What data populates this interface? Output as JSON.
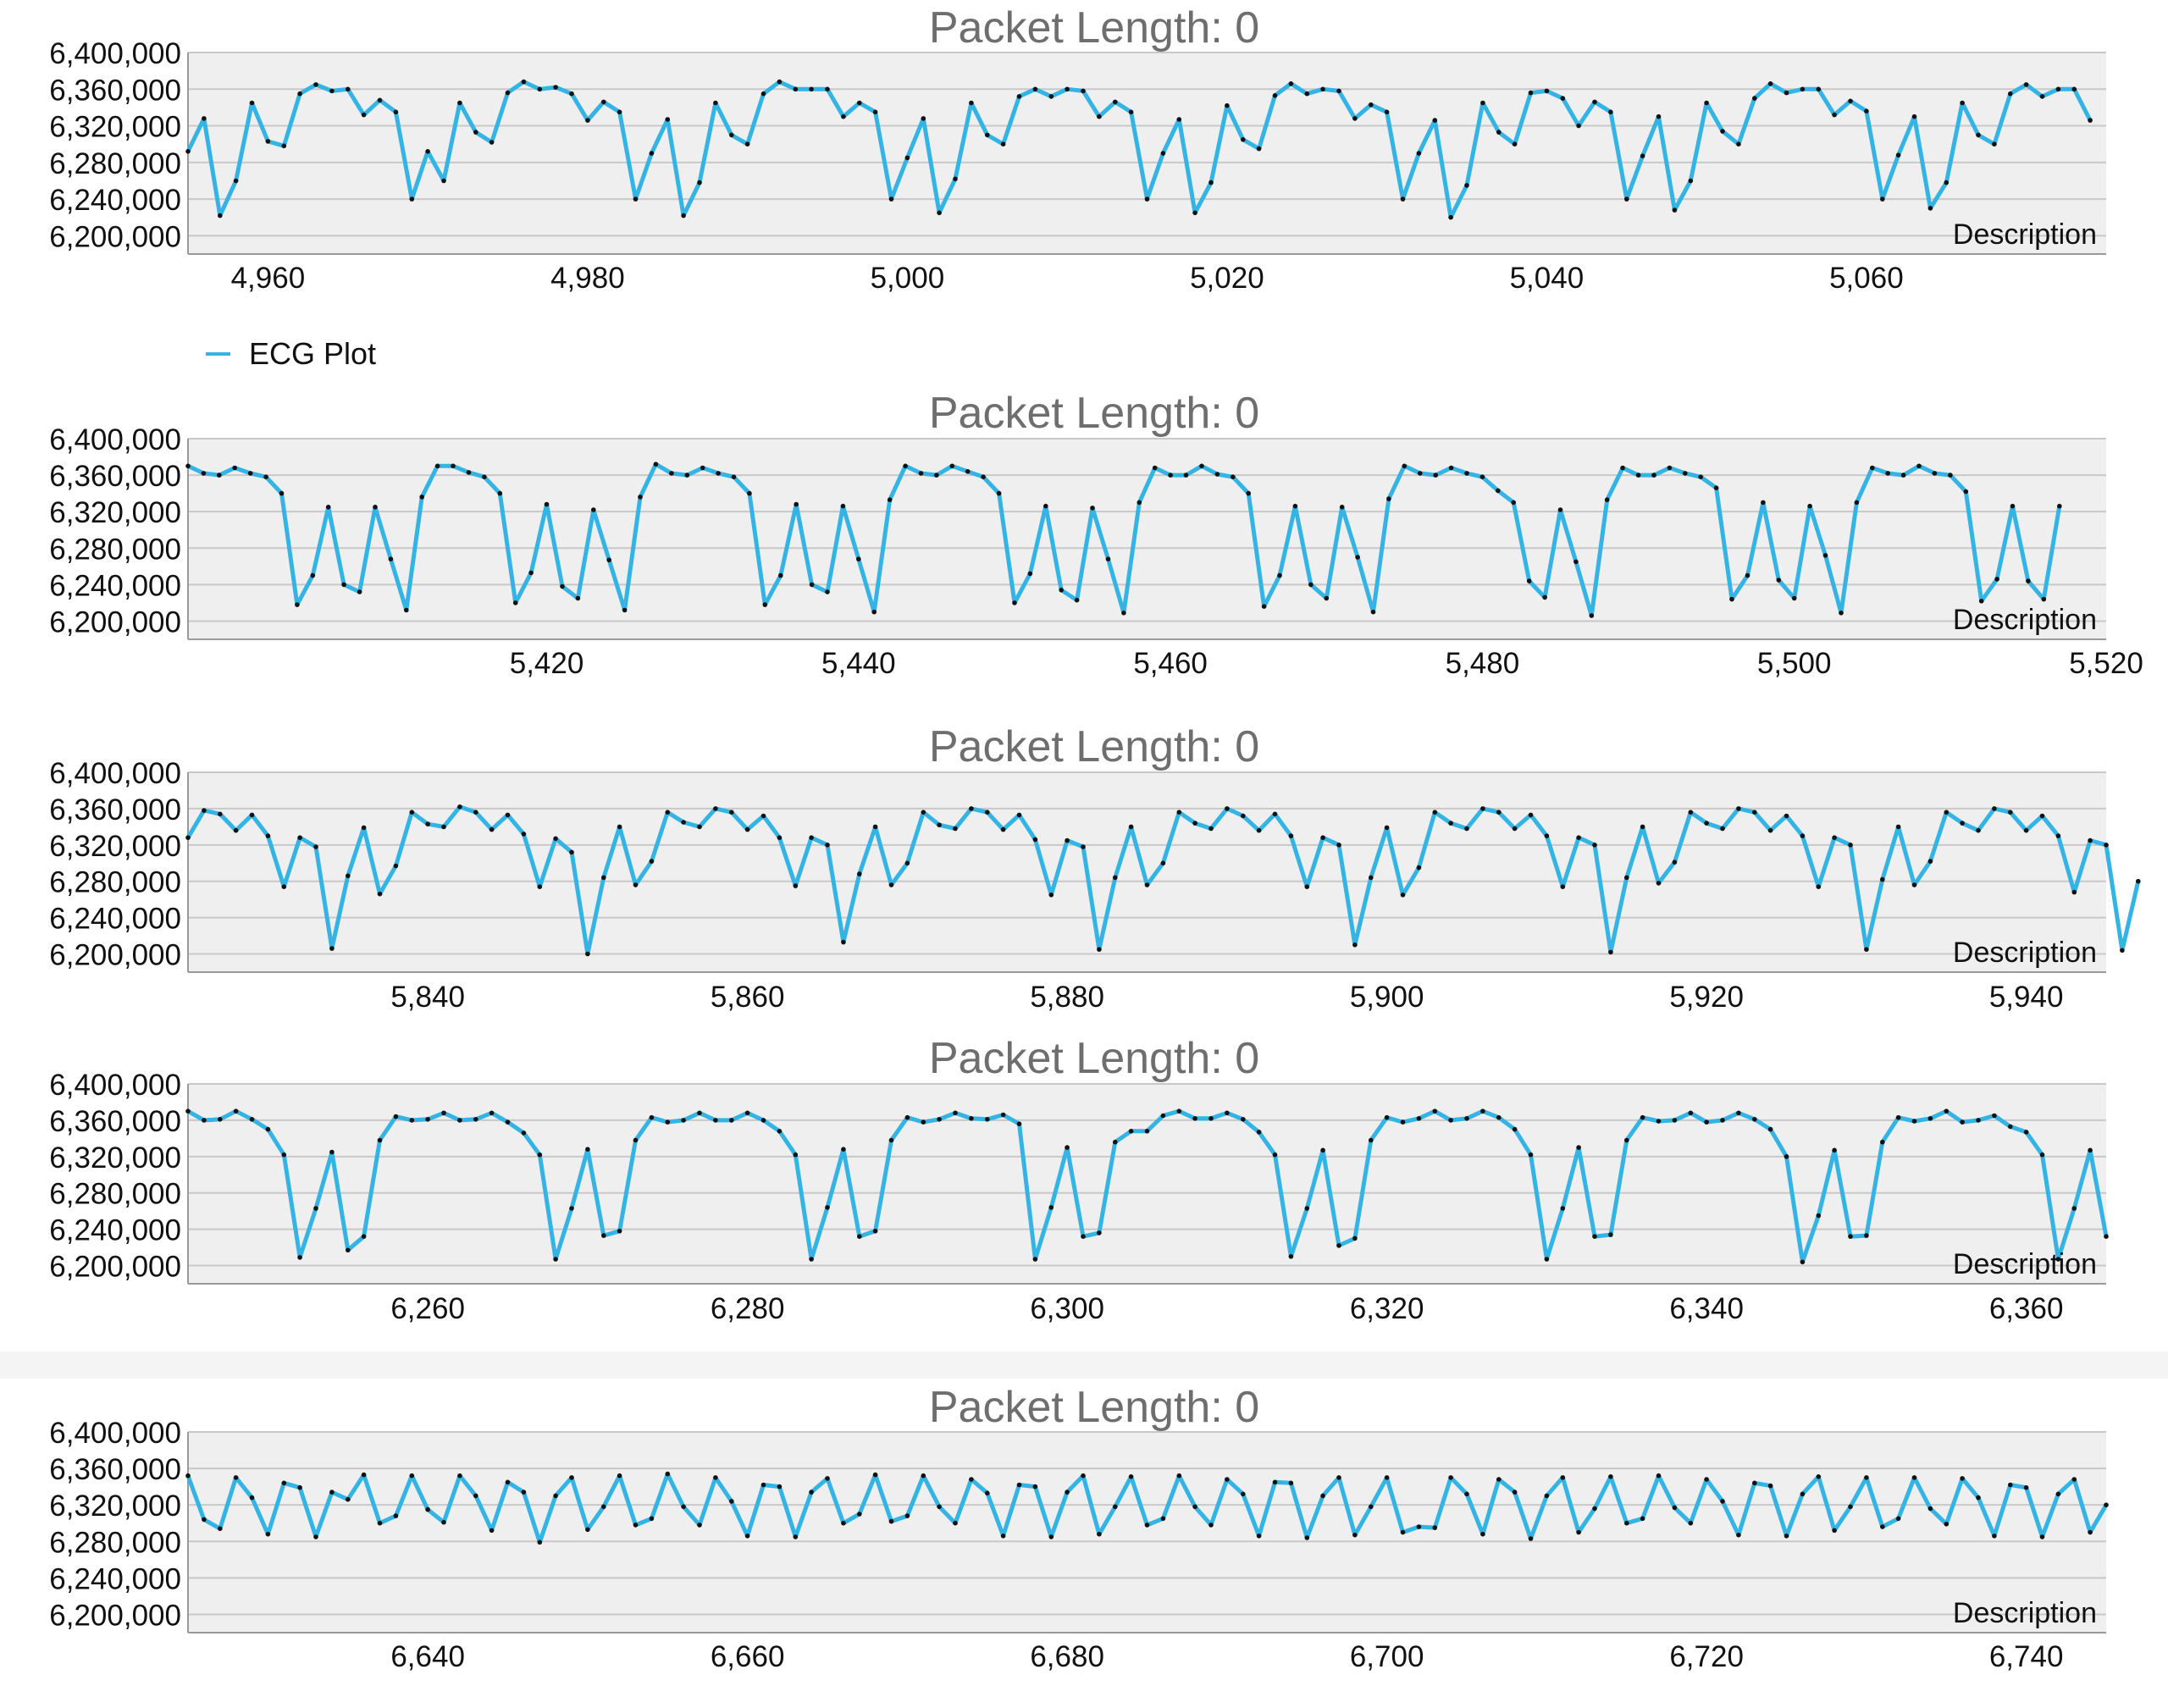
{
  "legend": {
    "label": "ECG Plot",
    "color": "#34B4E4"
  },
  "style": {
    "line_color": "#34B4E4",
    "marker_color": "#111111",
    "plot_bg": "#EFEFEF",
    "grid_color": "#C8C8C8"
  },
  "chart_data": [
    {
      "type": "line",
      "title": "Packet Length: 0",
      "description": "Description",
      "xlim": [
        4955,
        5075
      ],
      "ylim": [
        6180000,
        6400000
      ],
      "yticks": [
        "6,400,000",
        "6,360,000",
        "6,320,000",
        "6,280,000",
        "6,240,000",
        "6,200,000"
      ],
      "xticks": [
        "4,960",
        "4,980",
        "5,000",
        "5,020",
        "5,040",
        "5,060"
      ],
      "series": [
        {
          "x_start": 4955,
          "values": [
            6292000,
            6328000,
            6222000,
            6260000,
            6345000,
            6303000,
            6298000,
            6355000,
            6365000,
            6358000,
            6360000,
            6332000,
            6348000,
            6335000,
            6240000,
            6292000,
            6260000,
            6345000,
            6313000,
            6302000,
            6356000,
            6368000,
            6360000,
            6362000,
            6355000,
            6326000,
            6346000,
            6335000,
            6240000,
            6290000,
            6327000,
            6222000,
            6258000,
            6345000,
            6310000,
            6300000,
            6355000,
            6368000,
            6360000,
            6360000,
            6360000,
            6330000,
            6345000,
            6335000,
            6240000,
            6285000,
            6328000,
            6225000,
            6262000,
            6345000,
            6310000,
            6300000,
            6352000,
            6360000,
            6352000,
            6360000,
            6358000,
            6330000,
            6346000,
            6335000,
            6240000,
            6290000,
            6327000,
            6225000,
            6258000,
            6342000,
            6305000,
            6295000,
            6353000,
            6366000,
            6355000,
            6360000,
            6358000,
            6328000,
            6343000,
            6335000,
            6240000,
            6290000,
            6326000,
            6220000,
            6255000,
            6345000,
            6313000,
            6300000,
            6356000,
            6358000,
            6350000,
            6320000,
            6346000,
            6335000,
            6240000,
            6287000,
            6330000,
            6228000,
            6260000,
            6345000,
            6314000,
            6300000,
            6350000,
            6366000,
            6356000,
            6360000,
            6360000,
            6332000,
            6347000,
            6336000,
            6240000,
            6288000,
            6330000,
            6230000,
            6258000,
            6345000,
            6310000,
            6300000,
            6355000,
            6365000,
            6352000,
            6360000,
            6360000,
            6326000
          ]
        }
      ]
    },
    {
      "type": "line",
      "title": "Packet Length: 0",
      "description": "Description",
      "xlim": [
        5397,
        5520
      ],
      "ylim": [
        6180000,
        6400000
      ],
      "yticks": [
        "6,400,000",
        "6,360,000",
        "6,320,000",
        "6,280,000",
        "6,240,000",
        "6,200,000"
      ],
      "xticks": [
        "5,420",
        "5,440",
        "5,460",
        "5,480",
        "5,500",
        "5,520"
      ],
      "series": [
        {
          "x_start": 5397,
          "values": [
            6370000,
            6362000,
            6360000,
            6368000,
            6362000,
            6358000,
            6340000,
            6218000,
            6250000,
            6325000,
            6240000,
            6232000,
            6325000,
            6268000,
            6212000,
            6336000,
            6370000,
            6370000,
            6363000,
            6358000,
            6340000,
            6220000,
            6253000,
            6328000,
            6238000,
            6225000,
            6322000,
            6267000,
            6212000,
            6336000,
            6372000,
            6362000,
            6360000,
            6368000,
            6362000,
            6358000,
            6340000,
            6218000,
            6250000,
            6328000,
            6240000,
            6232000,
            6326000,
            6268000,
            6210000,
            6333000,
            6370000,
            6362000,
            6360000,
            6370000,
            6364000,
            6358000,
            6340000,
            6220000,
            6252000,
            6326000,
            6234000,
            6223000,
            6324000,
            6268000,
            6209000,
            6330000,
            6368000,
            6360000,
            6360000,
            6370000,
            6361000,
            6358000,
            6340000,
            6216000,
            6250000,
            6326000,
            6240000,
            6225000,
            6325000,
            6270000,
            6210000,
            6334000,
            6370000,
            6362000,
            6360000,
            6368000,
            6362000,
            6358000,
            6343000,
            6330000,
            6244000,
            6226000,
            6322000,
            6265000,
            6206000,
            6333000,
            6368000,
            6360000,
            6360000,
            6368000,
            6362000,
            6358000,
            6346000,
            6224000,
            6250000,
            6330000,
            6245000,
            6225000,
            6326000,
            6272000,
            6209000,
            6330000,
            6368000,
            6362000,
            6360000,
            6370000,
            6362000,
            6360000,
            6342000,
            6222000,
            6246000,
            6326000,
            6244000,
            6224000,
            6326000
          ]
        }
      ]
    },
    {
      "type": "line",
      "title": "Packet Length: 0",
      "description": "Description",
      "xlim": [
        5825,
        5945
      ],
      "ylim": [
        6180000,
        6400000
      ],
      "yticks": [
        "6,400,000",
        "6,360,000",
        "6,320,000",
        "6,280,000",
        "6,240,000",
        "6,200,000"
      ],
      "xticks": [
        "5,840",
        "5,860",
        "5,880",
        "5,900",
        "5,920",
        "5,940"
      ],
      "series": [
        {
          "x_start": 5825,
          "values": [
            6328000,
            6358000,
            6354000,
            6336000,
            6353000,
            6330000,
            6274000,
            6328000,
            6318000,
            6206000,
            6286000,
            6339000,
            6266000,
            6297000,
            6356000,
            6343000,
            6340000,
            6362000,
            6356000,
            6337000,
            6353000,
            6332000,
            6274000,
            6327000,
            6312000,
            6200000,
            6284000,
            6340000,
            6276000,
            6302000,
            6356000,
            6345000,
            6340000,
            6360000,
            6356000,
            6337000,
            6352000,
            6328000,
            6275000,
            6328000,
            6320000,
            6213000,
            6288000,
            6340000,
            6276000,
            6300000,
            6356000,
            6342000,
            6338000,
            6360000,
            6356000,
            6337000,
            6353000,
            6326000,
            6265000,
            6325000,
            6318000,
            6205000,
            6284000,
            6340000,
            6276000,
            6300000,
            6356000,
            6344000,
            6338000,
            6360000,
            6352000,
            6336000,
            6354000,
            6330000,
            6274000,
            6328000,
            6320000,
            6210000,
            6284000,
            6339000,
            6265000,
            6295000,
            6356000,
            6344000,
            6338000,
            6360000,
            6356000,
            6338000,
            6353000,
            6330000,
            6274000,
            6328000,
            6320000,
            6202000,
            6284000,
            6340000,
            6278000,
            6301000,
            6356000,
            6344000,
            6338000,
            6360000,
            6356000,
            6336000,
            6352000,
            6330000,
            6274000,
            6328000,
            6320000,
            6205000,
            6282000,
            6340000,
            6276000,
            6302000,
            6356000,
            6344000,
            6336000,
            6360000,
            6356000,
            6336000,
            6352000,
            6330000,
            6268000,
            6325000,
            6320000,
            6204000,
            6280000
          ]
        }
      ]
    },
    {
      "type": "line",
      "title": "Packet Length: 0",
      "description": "Description",
      "xlim": [
        6245,
        6365
      ],
      "ylim": [
        6180000,
        6400000
      ],
      "yticks": [
        "6,400,000",
        "6,360,000",
        "6,320,000",
        "6,280,000",
        "6,240,000",
        "6,200,000"
      ],
      "xticks": [
        "6,260",
        "6,280",
        "6,300",
        "6,320",
        "6,340",
        "6,360"
      ],
      "series": [
        {
          "x_start": 6245,
          "values": [
            6370000,
            6360000,
            6361000,
            6370000,
            6361000,
            6350000,
            6322000,
            6209000,
            6263000,
            6325000,
            6217000,
            6232000,
            6338000,
            6364000,
            6360000,
            6361000,
            6368000,
            6360000,
            6361000,
            6368000,
            6358000,
            6346000,
            6322000,
            6207000,
            6263000,
            6328000,
            6233000,
            6238000,
            6338000,
            6363000,
            6358000,
            6360000,
            6368000,
            6360000,
            6360000,
            6368000,
            6360000,
            6348000,
            6322000,
            6207000,
            6264000,
            6328000,
            6232000,
            6238000,
            6338000,
            6363000,
            6358000,
            6361000,
            6368000,
            6362000,
            6361000,
            6366000,
            6356000,
            6207000,
            6264000,
            6330000,
            6232000,
            6236000,
            6336000,
            6348000,
            6348000,
            6365000,
            6370000,
            6362000,
            6362000,
            6368000,
            6361000,
            6347000,
            6322000,
            6210000,
            6263000,
            6327000,
            6222000,
            6230000,
            6338000,
            6363000,
            6358000,
            6362000,
            6370000,
            6360000,
            6362000,
            6370000,
            6363000,
            6350000,
            6322000,
            6207000,
            6263000,
            6330000,
            6232000,
            6234000,
            6338000,
            6363000,
            6359000,
            6360000,
            6368000,
            6358000,
            6360000,
            6368000,
            6361000,
            6350000,
            6320000,
            6204000,
            6255000,
            6327000,
            6232000,
            6233000,
            6336000,
            6363000,
            6359000,
            6362000,
            6370000,
            6358000,
            6360000,
            6365000,
            6353000,
            6347000,
            6322000,
            6207000,
            6263000,
            6327000,
            6232000
          ]
        }
      ]
    },
    {
      "type": "line",
      "title": "Packet Length: 0",
      "description": "Description",
      "xlim": [
        6625,
        6745
      ],
      "ylim": [
        6180000,
        6400000
      ],
      "yticks": [
        "6,400,000",
        "6,360,000",
        "6,320,000",
        "6,280,000",
        "6,240,000",
        "6,200,000"
      ],
      "xticks": [
        "6,640",
        "6,660",
        "6,680",
        "6,700",
        "6,720",
        "6,740"
      ],
      "series": [
        {
          "x_start": 6625,
          "values": [
            6352000,
            6304000,
            6294000,
            6350000,
            6328000,
            6288000,
            6344000,
            6339000,
            6285000,
            6334000,
            6326000,
            6353000,
            6300000,
            6308000,
            6352000,
            6315000,
            6301000,
            6352000,
            6330000,
            6292000,
            6345000,
            6334000,
            6279000,
            6330000,
            6350000,
            6293000,
            6318000,
            6352000,
            6298000,
            6305000,
            6354000,
            6318000,
            6298000,
            6350000,
            6324000,
            6286000,
            6342000,
            6340000,
            6285000,
            6334000,
            6349000,
            6300000,
            6310000,
            6353000,
            6302000,
            6308000,
            6352000,
            6318000,
            6300000,
            6348000,
            6333000,
            6286000,
            6342000,
            6340000,
            6285000,
            6334000,
            6352000,
            6288000,
            6318000,
            6351000,
            6298000,
            6305000,
            6352000,
            6318000,
            6298000,
            6348000,
            6332000,
            6286000,
            6345000,
            6344000,
            6284000,
            6330000,
            6350000,
            6287000,
            6318000,
            6350000,
            6290000,
            6296000,
            6295000,
            6350000,
            6332000,
            6288000,
            6348000,
            6334000,
            6283000,
            6330000,
            6350000,
            6290000,
            6316000,
            6351000,
            6300000,
            6305000,
            6352000,
            6317000,
            6300000,
            6348000,
            6324000,
            6287000,
            6344000,
            6341000,
            6286000,
            6332000,
            6351000,
            6292000,
            6318000,
            6350000,
            6296000,
            6305000,
            6350000,
            6316000,
            6299000,
            6349000,
            6328000,
            6286000,
            6342000,
            6339000,
            6285000,
            6332000,
            6348000,
            6290000,
            6320000
          ]
        }
      ]
    }
  ]
}
